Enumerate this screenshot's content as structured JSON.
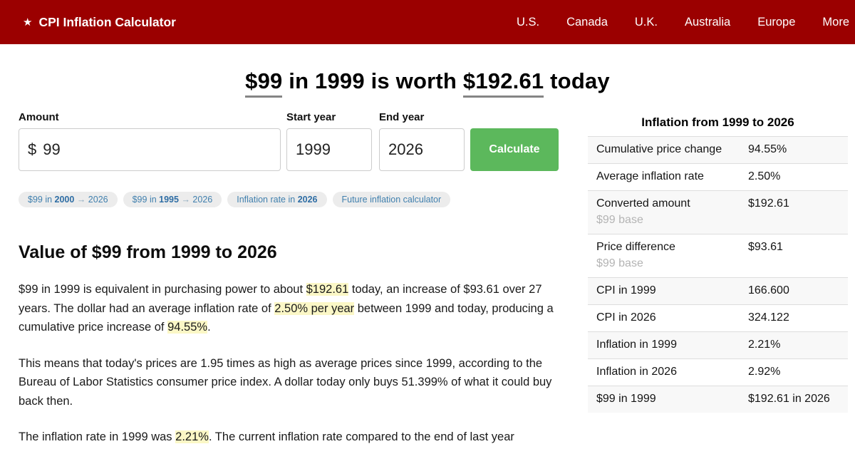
{
  "theme": {
    "accent": "#9b0000",
    "green": "#5cb85c",
    "chipblue": "#4180ae",
    "hl": "#fbf7c6"
  },
  "nav": {
    "star": "★",
    "brand": "CPI Inflation Calculator",
    "items": [
      "U.S.",
      "Canada",
      "U.K.",
      "Australia",
      "Europe",
      "More"
    ]
  },
  "hero": {
    "amount": "$99",
    "middle": " in 1999 is worth ",
    "converted": "$192.61",
    "suffix": " today"
  },
  "form": {
    "amount_label": "Amount",
    "currency_prefix": "$",
    "amount_value": "99",
    "start_year_label": "Start year",
    "start_year_value": "1999",
    "end_year_label": "End year",
    "end_year_value": "2026",
    "calculate_label": "Calculate"
  },
  "chips": [
    {
      "pre": "$99 in ",
      "bold": "2000",
      "arrow": "→",
      "post": " 2026"
    },
    {
      "pre": "$99 in ",
      "bold": "1995",
      "arrow": "→",
      "post": " 2026"
    },
    {
      "pre": "Inflation rate in ",
      "bold": "2026"
    },
    {
      "pre": "Future inflation calculator"
    }
  ],
  "article": {
    "heading": "Value of $99 from 1999 to 2026",
    "p1": [
      {
        "t": "$99 in 1999 is equivalent in purchasing power to about "
      },
      {
        "t": "$192.61"
      },
      {
        "t": " today, an increase of $93.61 over 27 years. The dollar had an average inflation rate of "
      },
      {
        "t": "2.50% per year"
      },
      {
        "t": " between 1999 and today, producing a cumulative price increase of "
      },
      {
        "t": "94.55%"
      },
      {
        "t": "."
      }
    ],
    "p2": "This means that today's prices are 1.95 times as high as average prices since 1999, according to the Bureau of Labor Statistics consumer price index. A dollar today only buys 51.399% of what it could buy back then.",
    "p3": [
      {
        "t": "The inflation rate in 1999 was "
      },
      {
        "t": "2.21%"
      },
      {
        "t": ". The current inflation rate compared to the end of last year"
      }
    ]
  },
  "stats": {
    "title": "Inflation from 1999 to 2026",
    "rows": [
      {
        "label": "Cumulative price change",
        "value": "94.55%"
      },
      {
        "label": "Average inflation rate",
        "value": "2.50%"
      },
      {
        "label": "Converted amount",
        "sub": "$99 base",
        "value": "$192.61"
      },
      {
        "label": "Price difference",
        "sub": "$99 base",
        "value": "$93.61"
      },
      {
        "label": "CPI in 1999",
        "value": "166.600"
      },
      {
        "label": "CPI in 2026",
        "value": "324.122"
      },
      {
        "label": "Inflation in 1999",
        "value": "2.21%"
      },
      {
        "label": "Inflation in 2026",
        "value": "2.92%"
      },
      {
        "label": "$99 in 1999",
        "value": "$192.61 in 2026"
      }
    ]
  }
}
